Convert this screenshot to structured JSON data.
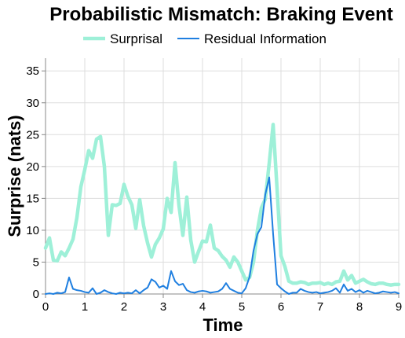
{
  "chart_data": {
    "type": "line",
    "title": "Probabilistic Mismatch: Braking Event",
    "xlabel": "Time",
    "ylabel": "Surprise (nats)",
    "xlim": [
      0,
      9
    ],
    "ylim": [
      0,
      37
    ],
    "x_ticks": [
      "0",
      "1",
      "2",
      "3",
      "4",
      "5",
      "6",
      "7",
      "8",
      "9"
    ],
    "y_ticks": [
      "0",
      "5",
      "10",
      "15",
      "20",
      "25",
      "30",
      "35"
    ],
    "grid": true,
    "legend_position": "top",
    "series": [
      {
        "name": "Surprisal",
        "color": "#9ef0d8",
        "stroke_width": 4.5,
        "points": [
          [
            0,
            7.2
          ],
          [
            0.1,
            8.8
          ],
          [
            0.2,
            5.3
          ],
          [
            0.3,
            5.2
          ],
          [
            0.4,
            6.6
          ],
          [
            0.5,
            6.0
          ],
          [
            0.6,
            7.2
          ],
          [
            0.7,
            8.6
          ],
          [
            0.8,
            12.0
          ],
          [
            0.9,
            16.8
          ],
          [
            1.0,
            19.5
          ],
          [
            1.1,
            22.5
          ],
          [
            1.2,
            21.3
          ],
          [
            1.3,
            24.3
          ],
          [
            1.4,
            24.7
          ],
          [
            1.5,
            20.0
          ],
          [
            1.6,
            9.2
          ],
          [
            1.7,
            14.0
          ],
          [
            1.8,
            13.9
          ],
          [
            1.9,
            14.2
          ],
          [
            2.0,
            17.2
          ],
          [
            2.1,
            15.3
          ],
          [
            2.2,
            14.0
          ],
          [
            2.3,
            10.3
          ],
          [
            2.4,
            14.8
          ],
          [
            2.5,
            10.7
          ],
          [
            2.6,
            8.0
          ],
          [
            2.7,
            5.8
          ],
          [
            2.8,
            7.8
          ],
          [
            2.9,
            8.8
          ],
          [
            3.0,
            10.2
          ],
          [
            3.1,
            15.0
          ],
          [
            3.2,
            12.8
          ],
          [
            3.3,
            20.6
          ],
          [
            3.4,
            13.9
          ],
          [
            3.5,
            9.2
          ],
          [
            3.6,
            15.2
          ],
          [
            3.7,
            8.5
          ],
          [
            3.8,
            5.0
          ],
          [
            3.9,
            6.7
          ],
          [
            4.0,
            8.3
          ],
          [
            4.1,
            8.2
          ],
          [
            4.2,
            10.8
          ],
          [
            4.3,
            7.2
          ],
          [
            4.4,
            6.8
          ],
          [
            4.5,
            5.9
          ],
          [
            4.6,
            5.3
          ],
          [
            4.7,
            4.2
          ],
          [
            4.8,
            5.8
          ],
          [
            4.9,
            5.0
          ],
          [
            5.0,
            3.6
          ],
          [
            5.1,
            2.2
          ],
          [
            5.2,
            2.6
          ],
          [
            5.3,
            5.0
          ],
          [
            5.4,
            10.0
          ],
          [
            5.5,
            13.5
          ],
          [
            5.6,
            14.9
          ],
          [
            5.7,
            20.5
          ],
          [
            5.8,
            26.6
          ],
          [
            5.9,
            16.5
          ],
          [
            6.0,
            6.0
          ],
          [
            6.1,
            4.3
          ],
          [
            6.2,
            2.0
          ],
          [
            6.3,
            1.7
          ],
          [
            6.4,
            1.7
          ],
          [
            6.5,
            1.9
          ],
          [
            6.6,
            1.8
          ],
          [
            6.7,
            1.5
          ],
          [
            6.8,
            1.7
          ],
          [
            6.9,
            1.7
          ],
          [
            7.0,
            1.8
          ],
          [
            7.1,
            1.5
          ],
          [
            7.2,
            1.7
          ],
          [
            7.3,
            1.5
          ],
          [
            7.4,
            1.9
          ],
          [
            7.5,
            2.0
          ],
          [
            7.6,
            3.6
          ],
          [
            7.7,
            2.2
          ],
          [
            7.8,
            2.9
          ],
          [
            7.9,
            1.7
          ],
          [
            8.0,
            2.0
          ],
          [
            8.1,
            2.3
          ],
          [
            8.2,
            1.9
          ],
          [
            8.3,
            1.6
          ],
          [
            8.4,
            1.5
          ],
          [
            8.5,
            1.7
          ],
          [
            8.6,
            1.7
          ],
          [
            8.7,
            1.5
          ],
          [
            8.8,
            1.4
          ],
          [
            8.9,
            1.5
          ],
          [
            9.0,
            1.5
          ]
        ]
      },
      {
        "name": "Residual Information",
        "color": "#1f7fe0",
        "stroke_width": 2,
        "points": [
          [
            0,
            0.0
          ],
          [
            0.1,
            0.1
          ],
          [
            0.2,
            0.0
          ],
          [
            0.3,
            0.2
          ],
          [
            0.4,
            0.1
          ],
          [
            0.5,
            0.3
          ],
          [
            0.6,
            2.6
          ],
          [
            0.7,
            0.8
          ],
          [
            0.8,
            0.6
          ],
          [
            0.9,
            0.5
          ],
          [
            1.0,
            0.3
          ],
          [
            1.1,
            0.2
          ],
          [
            1.2,
            0.9
          ],
          [
            1.3,
            0.0
          ],
          [
            1.4,
            0.2
          ],
          [
            1.5,
            0.6
          ],
          [
            1.6,
            0.3
          ],
          [
            1.7,
            0.1
          ],
          [
            1.8,
            0.0
          ],
          [
            1.9,
            0.2
          ],
          [
            2.0,
            0.1
          ],
          [
            2.1,
            0.2
          ],
          [
            2.2,
            0.1
          ],
          [
            2.3,
            0.6
          ],
          [
            2.4,
            0.1
          ],
          [
            2.5,
            0.6
          ],
          [
            2.6,
            1.0
          ],
          [
            2.7,
            2.3
          ],
          [
            2.8,
            1.9
          ],
          [
            2.9,
            1.0
          ],
          [
            3.0,
            1.3
          ],
          [
            3.1,
            0.8
          ],
          [
            3.2,
            3.6
          ],
          [
            3.3,
            2.0
          ],
          [
            3.4,
            1.4
          ],
          [
            3.5,
            1.6
          ],
          [
            3.6,
            0.6
          ],
          [
            3.7,
            0.3
          ],
          [
            3.8,
            0.2
          ],
          [
            3.9,
            0.4
          ],
          [
            4.0,
            0.5
          ],
          [
            4.1,
            0.4
          ],
          [
            4.2,
            0.2
          ],
          [
            4.3,
            0.3
          ],
          [
            4.4,
            0.4
          ],
          [
            4.5,
            0.8
          ],
          [
            4.6,
            1.7
          ],
          [
            4.7,
            0.8
          ],
          [
            4.8,
            0.5
          ],
          [
            4.9,
            0.2
          ],
          [
            5.0,
            0.1
          ],
          [
            5.1,
            0.9
          ],
          [
            5.2,
            2.7
          ],
          [
            5.3,
            6.8
          ],
          [
            5.4,
            9.4
          ],
          [
            5.5,
            10.5
          ],
          [
            5.6,
            15.6
          ],
          [
            5.7,
            18.3
          ],
          [
            5.8,
            9.4
          ],
          [
            5.9,
            1.5
          ],
          [
            6.0,
            0.9
          ],
          [
            6.1,
            0.4
          ],
          [
            6.2,
            0.0
          ],
          [
            6.3,
            0.2
          ],
          [
            6.4,
            0.2
          ],
          [
            6.5,
            0.8
          ],
          [
            6.6,
            0.5
          ],
          [
            6.7,
            0.3
          ],
          [
            6.8,
            0.2
          ],
          [
            6.9,
            0.3
          ],
          [
            7.0,
            0.1
          ],
          [
            7.1,
            0.2
          ],
          [
            7.2,
            0.3
          ],
          [
            7.3,
            0.5
          ],
          [
            7.4,
            0.9
          ],
          [
            7.5,
            0.2
          ],
          [
            7.6,
            1.5
          ],
          [
            7.7,
            0.5
          ],
          [
            7.8,
            0.8
          ],
          [
            7.9,
            0.3
          ],
          [
            8.0,
            0.6
          ],
          [
            8.1,
            0.2
          ],
          [
            8.2,
            0.5
          ],
          [
            8.3,
            0.3
          ],
          [
            8.4,
            0.1
          ],
          [
            8.5,
            0.2
          ],
          [
            8.6,
            0.4
          ],
          [
            8.7,
            0.3
          ],
          [
            8.8,
            0.2
          ],
          [
            8.9,
            0.3
          ],
          [
            9.0,
            0.1
          ]
        ]
      }
    ]
  }
}
